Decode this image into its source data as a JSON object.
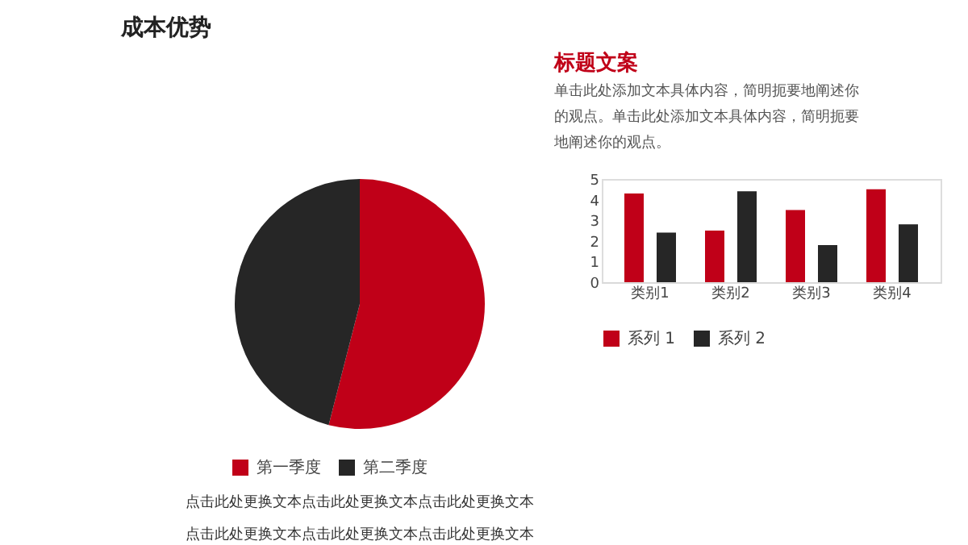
{
  "chart_data": [
    {
      "type": "pie",
      "title": "成本优势",
      "categories": [
        "第一季度",
        "第二季度"
      ],
      "values": [
        54,
        46
      ],
      "colors": [
        "#c00018",
        "#262626"
      ],
      "legend": "bottom",
      "annotations": [
        "点击此处更换文本点击此处更换文本点击此处更换文本",
        "点击此处更换文本点击此处更换文本点击此处更换文本"
      ]
    },
    {
      "type": "bar",
      "title": "标题文案",
      "subtitle": "单击此处添加文本具体内容，简明扼要地阐述你的观点。单击此处添加文本具体内容，简明扼要地阐述你的观点。",
      "categories": [
        "类别1",
        "类别2",
        "类别3",
        "类别4"
      ],
      "series": [
        {
          "name": "系列 1",
          "color": "#c00018",
          "values": [
            4.3,
            2.5,
            3.5,
            4.5
          ]
        },
        {
          "name": "系列 2",
          "color": "#262626",
          "values": [
            2.4,
            4.4,
            1.8,
            2.8
          ]
        }
      ],
      "ylim": [
        0,
        5
      ],
      "yticks": [
        0,
        1,
        2,
        3,
        4,
        5
      ],
      "grid": false,
      "legend": "bottom"
    }
  ]
}
